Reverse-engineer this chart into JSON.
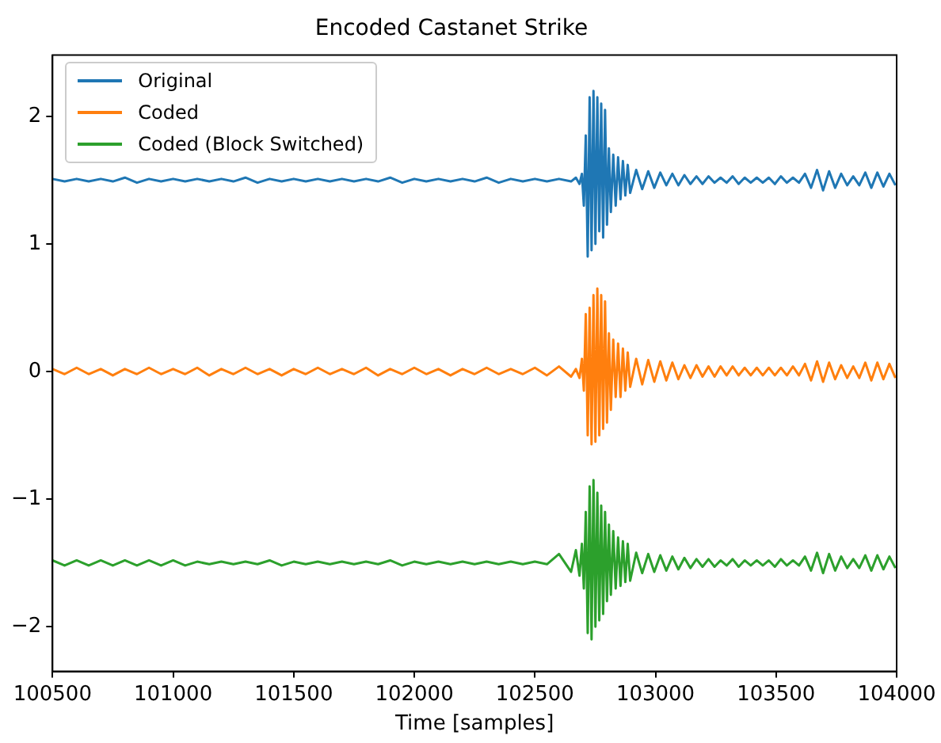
{
  "chart_data": {
    "type": "line",
    "title": "Encoded Castanet Strike",
    "xlabel": "Time [samples]",
    "x": [
      100500,
      100550,
      100600,
      100650,
      100700,
      100750,
      100800,
      100850,
      100900,
      100950,
      101000,
      101050,
      101100,
      101150,
      101200,
      101250,
      101300,
      101350,
      101400,
      101450,
      101500,
      101550,
      101600,
      101650,
      101700,
      101750,
      101800,
      101850,
      101900,
      101950,
      102000,
      102050,
      102100,
      102150,
      102200,
      102250,
      102300,
      102350,
      102400,
      102450,
      102500,
      102550,
      102600,
      102650,
      102670,
      102685,
      102695,
      102703,
      102711,
      102719,
      102727,
      102735,
      102743,
      102751,
      102759,
      102767,
      102775,
      102783,
      102791,
      102799,
      102807,
      102815,
      102825,
      102835,
      102845,
      102855,
      102865,
      102875,
      102885,
      102895,
      102920,
      102945,
      102970,
      102995,
      103020,
      103045,
      103070,
      103095,
      103120,
      103145,
      103170,
      103195,
      103220,
      103245,
      103270,
      103295,
      103320,
      103345,
      103370,
      103395,
      103420,
      103445,
      103470,
      103495,
      103520,
      103545,
      103570,
      103595,
      103620,
      103645,
      103670,
      103695,
      103720,
      103745,
      103770,
      103795,
      103820,
      103845,
      103870,
      103895,
      103920,
      103945,
      103970,
      103995
    ],
    "series": [
      {
        "name": "Original",
        "color": "#1f77b4",
        "values": [
          1.51,
          1.49,
          1.51,
          1.49,
          1.51,
          1.49,
          1.52,
          1.48,
          1.51,
          1.49,
          1.51,
          1.49,
          1.51,
          1.49,
          1.51,
          1.49,
          1.52,
          1.48,
          1.51,
          1.49,
          1.51,
          1.49,
          1.51,
          1.49,
          1.51,
          1.49,
          1.51,
          1.49,
          1.52,
          1.48,
          1.51,
          1.49,
          1.51,
          1.49,
          1.51,
          1.49,
          1.52,
          1.48,
          1.51,
          1.49,
          1.51,
          1.49,
          1.51,
          1.49,
          1.52,
          1.47,
          1.55,
          1.3,
          1.85,
          0.9,
          2.15,
          0.95,
          2.2,
          1.0,
          2.15,
          1.1,
          2.1,
          1.05,
          2.05,
          1.15,
          1.75,
          1.25,
          1.7,
          1.3,
          1.68,
          1.35,
          1.65,
          1.38,
          1.62,
          1.4,
          1.58,
          1.43,
          1.57,
          1.44,
          1.56,
          1.46,
          1.55,
          1.46,
          1.54,
          1.47,
          1.53,
          1.47,
          1.53,
          1.48,
          1.52,
          1.48,
          1.53,
          1.47,
          1.52,
          1.48,
          1.52,
          1.48,
          1.52,
          1.47,
          1.53,
          1.48,
          1.52,
          1.48,
          1.55,
          1.44,
          1.58,
          1.42,
          1.57,
          1.44,
          1.55,
          1.46,
          1.53,
          1.46,
          1.56,
          1.44,
          1.56,
          1.45,
          1.55,
          1.46
        ]
      },
      {
        "name": "Coded",
        "color": "#ff7f0e",
        "values": [
          0.02,
          -0.02,
          0.03,
          -0.02,
          0.02,
          -0.03,
          0.02,
          -0.02,
          0.03,
          -0.02,
          0.02,
          -0.02,
          0.03,
          -0.03,
          0.02,
          -0.02,
          0.03,
          -0.02,
          0.02,
          -0.03,
          0.02,
          -0.02,
          0.03,
          -0.02,
          0.02,
          -0.02,
          0.03,
          -0.03,
          0.02,
          -0.02,
          0.03,
          -0.02,
          0.02,
          -0.03,
          0.02,
          -0.02,
          0.03,
          -0.02,
          0.02,
          -0.02,
          0.03,
          -0.03,
          0.04,
          -0.04,
          0.02,
          -0.05,
          0.1,
          -0.15,
          0.45,
          -0.5,
          0.5,
          -0.57,
          0.6,
          -0.55,
          0.65,
          -0.5,
          0.6,
          -0.45,
          0.55,
          -0.4,
          0.3,
          -0.3,
          0.25,
          -0.2,
          0.22,
          -0.2,
          0.18,
          -0.15,
          0.15,
          -0.12,
          0.1,
          -0.1,
          0.09,
          -0.08,
          0.08,
          -0.07,
          0.07,
          -0.06,
          0.05,
          -0.05,
          0.05,
          -0.04,
          0.04,
          -0.04,
          0.04,
          -0.03,
          0.04,
          -0.03,
          0.03,
          -0.03,
          0.03,
          -0.03,
          0.03,
          -0.03,
          0.03,
          -0.03,
          0.04,
          -0.03,
          0.06,
          -0.07,
          0.08,
          -0.08,
          0.07,
          -0.06,
          0.05,
          -0.05,
          0.04,
          -0.05,
          0.07,
          -0.07,
          0.07,
          -0.06,
          0.06,
          -0.05
        ]
      },
      {
        "name": "Coded (Block Switched)",
        "color": "#2ca02c",
        "values": [
          -1.48,
          -1.52,
          -1.48,
          -1.52,
          -1.48,
          -1.52,
          -1.48,
          -1.52,
          -1.48,
          -1.52,
          -1.48,
          -1.52,
          -1.49,
          -1.51,
          -1.49,
          -1.51,
          -1.49,
          -1.51,
          -1.48,
          -1.52,
          -1.49,
          -1.51,
          -1.49,
          -1.51,
          -1.49,
          -1.51,
          -1.49,
          -1.51,
          -1.48,
          -1.52,
          -1.49,
          -1.51,
          -1.49,
          -1.51,
          -1.49,
          -1.51,
          -1.49,
          -1.51,
          -1.49,
          -1.51,
          -1.49,
          -1.51,
          -1.43,
          -1.57,
          -1.4,
          -1.6,
          -1.35,
          -1.7,
          -1.1,
          -2.05,
          -0.9,
          -2.1,
          -0.85,
          -2.0,
          -0.95,
          -1.95,
          -1.05,
          -1.9,
          -1.1,
          -1.8,
          -1.2,
          -1.75,
          -1.25,
          -1.7,
          -1.3,
          -1.68,
          -1.33,
          -1.65,
          -1.35,
          -1.64,
          -1.42,
          -1.58,
          -1.43,
          -1.57,
          -1.44,
          -1.56,
          -1.45,
          -1.55,
          -1.46,
          -1.54,
          -1.47,
          -1.53,
          -1.47,
          -1.53,
          -1.48,
          -1.52,
          -1.47,
          -1.53,
          -1.48,
          -1.52,
          -1.48,
          -1.52,
          -1.48,
          -1.53,
          -1.47,
          -1.52,
          -1.48,
          -1.52,
          -1.45,
          -1.56,
          -1.42,
          -1.58,
          -1.43,
          -1.56,
          -1.45,
          -1.54,
          -1.47,
          -1.54,
          -1.44,
          -1.56,
          -1.44,
          -1.55,
          -1.45,
          -1.54
        ]
      }
    ],
    "xlim": [
      100500,
      104000
    ],
    "xticks": [
      100500,
      101000,
      101500,
      102000,
      102500,
      103000,
      103500,
      104000
    ],
    "ylim": [
      -2.35,
      2.48
    ],
    "yticks": [
      -2,
      -1,
      0,
      1,
      2
    ],
    "legend": "top left",
    "grid": false
  }
}
